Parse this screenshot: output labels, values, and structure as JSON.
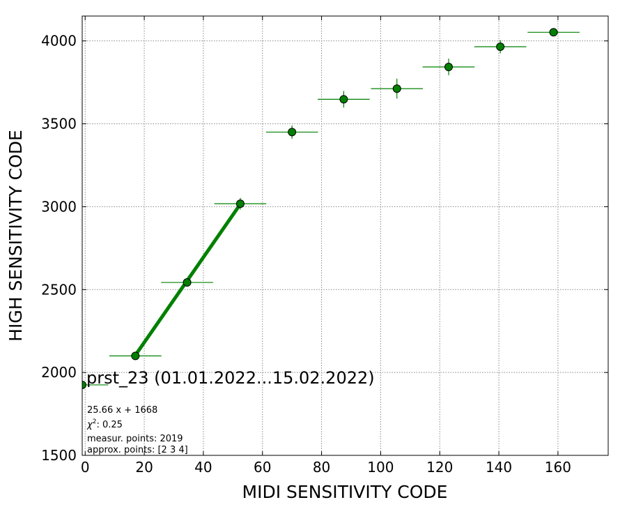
{
  "chart_data": {
    "type": "scatter",
    "xlabel": "MIDI SENSITIVITY CODE",
    "ylabel": "HIGH SENSITIVITY CODE",
    "xlim": [
      -1,
      177
    ],
    "ylim": [
      1500,
      4150
    ],
    "x_ticks": [
      0,
      20,
      40,
      60,
      80,
      100,
      120,
      140,
      160
    ],
    "y_ticks": [
      1500,
      2000,
      2500,
      3000,
      3500,
      4000
    ],
    "grid": true,
    "marker_color": "#008000",
    "points": [
      {
        "x": -1,
        "y": 1925,
        "xerr": 8.8,
        "yerr": 0
      },
      {
        "x": 17,
        "y": 2100,
        "xerr": 8.8,
        "yerr": 0
      },
      {
        "x": 34.5,
        "y": 2543,
        "xerr": 8.8,
        "yerr": 15
      },
      {
        "x": 52.5,
        "y": 3018,
        "xerr": 8.8,
        "yerr": 35
      },
      {
        "x": 70,
        "y": 3450,
        "xerr": 8.8,
        "yerr": 40
      },
      {
        "x": 87.5,
        "y": 3648,
        "xerr": 8.8,
        "yerr": 50
      },
      {
        "x": 105.5,
        "y": 3712,
        "xerr": 8.8,
        "yerr": 60
      },
      {
        "x": 123,
        "y": 3843,
        "xerr": 8.8,
        "yerr": 50
      },
      {
        "x": 140.5,
        "y": 3965,
        "xerr": 8.8,
        "yerr": 40
      },
      {
        "x": 158.5,
        "y": 4052,
        "xerr": 8.8,
        "yerr": 10
      }
    ],
    "fit": {
      "slope": 25.66,
      "intercept": 1668,
      "x_range": [
        17,
        52.5
      ],
      "color": "#008000"
    },
    "annotations": {
      "title": "prst_23 (01.01.2022...15.02.2022)",
      "formula": "25.66 x + 1668",
      "chi2_symbol": "χ",
      "chi2_sup": "2",
      "chi2_value": ": 0.25",
      "measur": "measur. points: 2019",
      "approx": "approx. points: [2 3 4]"
    }
  }
}
